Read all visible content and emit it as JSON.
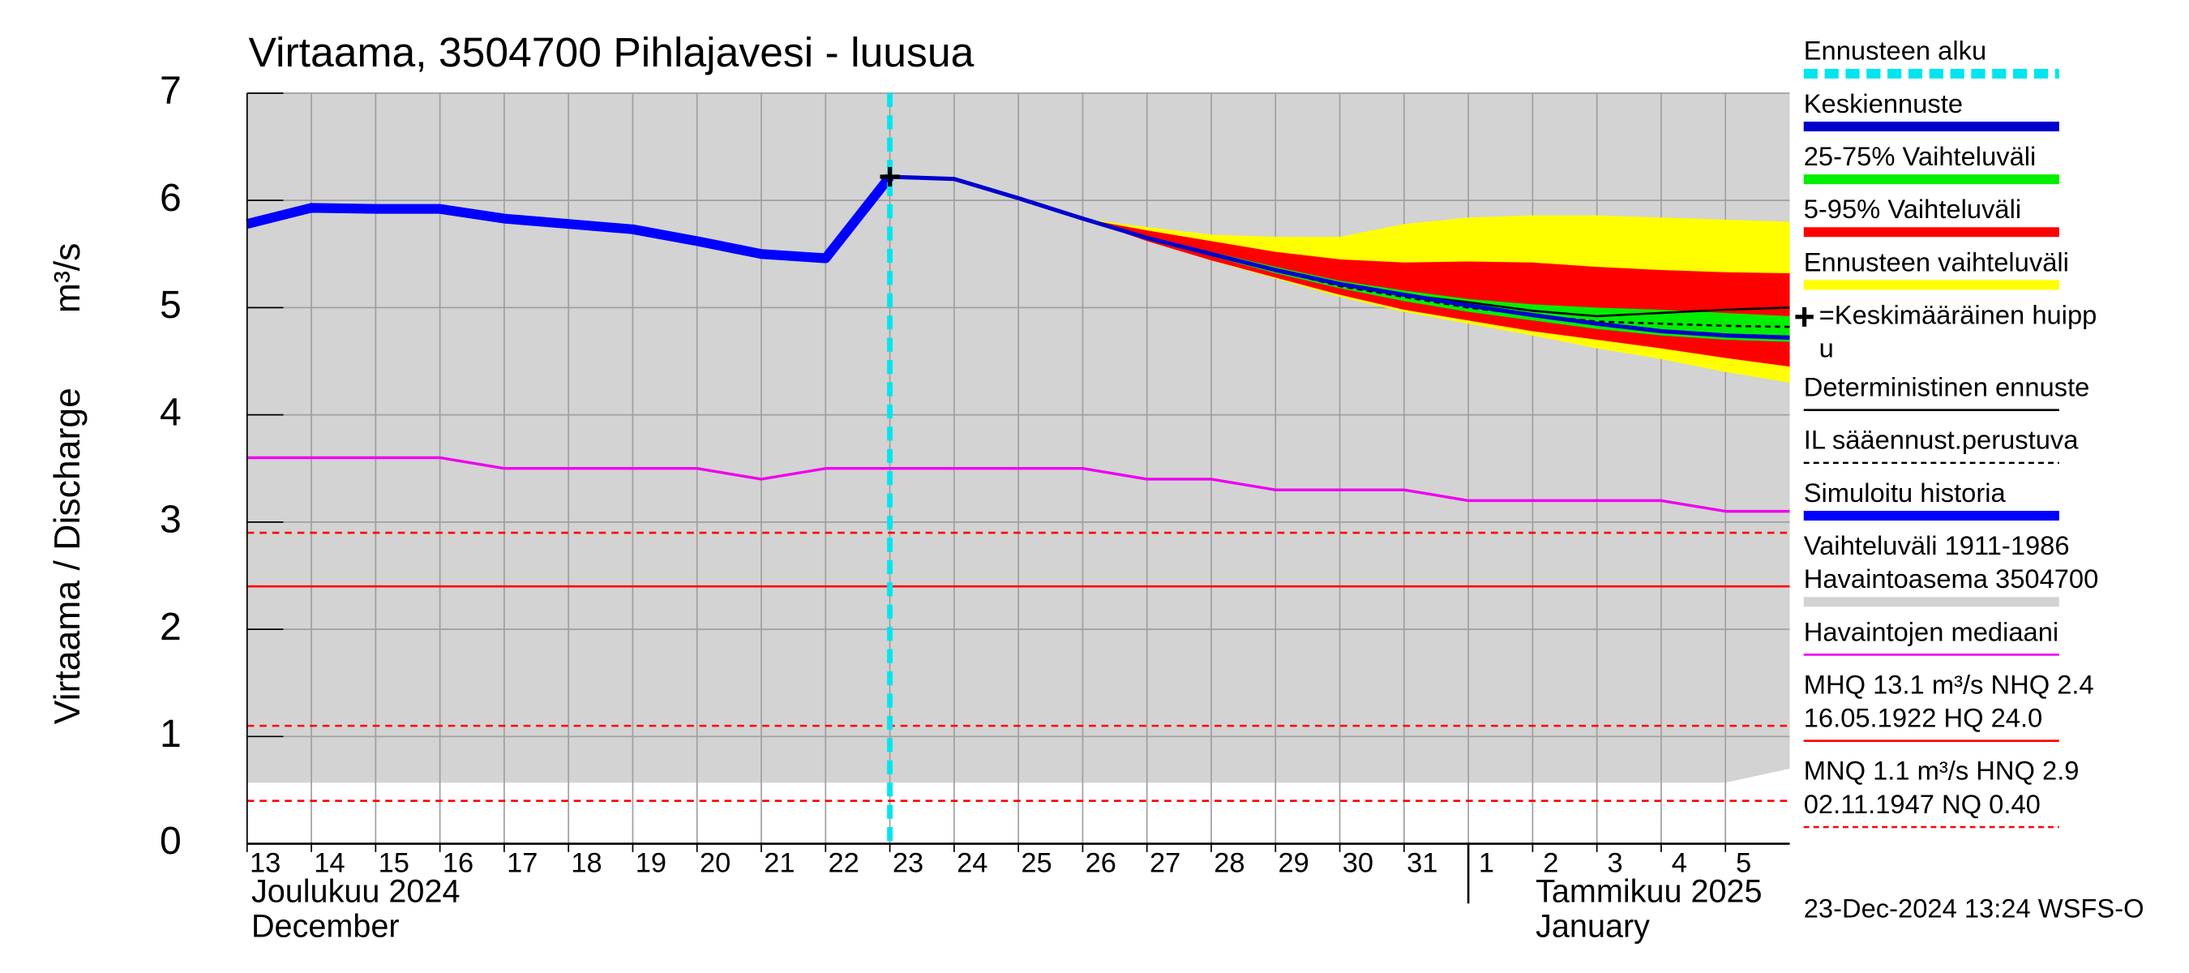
{
  "chart_data": {
    "type": "line",
    "title": "Virtaama, 3504700 Pihlajavesi - luusua",
    "ylabel": "Virtaama / Discharge",
    "yunit": "m³/s",
    "month_labels": [
      [
        "Joulukuu  2024",
        "December"
      ],
      [
        "Tammikuu  2025",
        "January"
      ]
    ],
    "footer": "23-Dec-2024 13:24 WSFS-O",
    "xlim": [
      0,
      24
    ],
    "ylim": [
      0,
      7
    ],
    "yticks": [
      0,
      1,
      2,
      3,
      4,
      5,
      6,
      7
    ],
    "xticks": [
      {
        "value": 0,
        "label": "13"
      },
      {
        "value": 1,
        "label": "14"
      },
      {
        "value": 2,
        "label": "15"
      },
      {
        "value": 3,
        "label": "16"
      },
      {
        "value": 4,
        "label": "17"
      },
      {
        "value": 5,
        "label": "18"
      },
      {
        "value": 6,
        "label": "19"
      },
      {
        "value": 7,
        "label": "20"
      },
      {
        "value": 8,
        "label": "21"
      },
      {
        "value": 9,
        "label": "22"
      },
      {
        "value": 10,
        "label": "23"
      },
      {
        "value": 11,
        "label": "24"
      },
      {
        "value": 12,
        "label": "25"
      },
      {
        "value": 13,
        "label": "26"
      },
      {
        "value": 14,
        "label": "27"
      },
      {
        "value": 15,
        "label": "28"
      },
      {
        "value": 16,
        "label": "29"
      },
      {
        "value": 17,
        "label": "30"
      },
      {
        "value": 18,
        "label": "31"
      },
      {
        "value": 19,
        "label": "1"
      },
      {
        "value": 20,
        "label": "2"
      },
      {
        "value": 21,
        "label": "3"
      },
      {
        "value": 22,
        "label": "4"
      },
      {
        "value": 23,
        "label": "5"
      }
    ],
    "month_boundary": 19,
    "grid": true,
    "legend": "right",
    "series": [
      {
        "name": "Ennusteen alku",
        "kind": "vline",
        "x": 10,
        "color": "#00e5ee",
        "dashed": true,
        "width": 4
      },
      {
        "name": "Keskiennuste",
        "kind": "line",
        "color": "#0000cc",
        "width": 3,
        "x": [
          10,
          11,
          12,
          13,
          14,
          15,
          16,
          17,
          18,
          19,
          20,
          21,
          22,
          23,
          24
        ],
        "values": [
          6.22,
          6.2,
          6.02,
          5.83,
          5.65,
          5.5,
          5.35,
          5.22,
          5.12,
          5.02,
          4.93,
          4.85,
          4.78,
          4.74,
          4.72
        ]
      },
      {
        "name": "25-75% Vaihteluväli",
        "kind": "band",
        "color": "#00ee00",
        "x": [
          13,
          14,
          15,
          16,
          17,
          18,
          19,
          20,
          21,
          22,
          23,
          24
        ],
        "upper": [
          5.83,
          5.66,
          5.52,
          5.38,
          5.25,
          5.16,
          5.08,
          5.03,
          5.0,
          4.98,
          4.95,
          4.92
        ],
        "lower": [
          5.83,
          5.64,
          5.48,
          5.32,
          5.18,
          5.06,
          4.96,
          4.88,
          4.8,
          4.74,
          4.7,
          4.68
        ]
      },
      {
        "name": "5-95% Vaihteluväli",
        "kind": "band",
        "color": "#ff0000",
        "x": [
          13,
          14,
          15,
          16,
          17,
          18,
          19,
          20,
          21,
          22,
          23,
          24
        ],
        "upper": [
          5.83,
          5.72,
          5.62,
          5.52,
          5.45,
          5.42,
          5.43,
          5.42,
          5.38,
          5.35,
          5.33,
          5.32
        ],
        "lower": [
          5.83,
          5.62,
          5.44,
          5.28,
          5.12,
          4.98,
          4.88,
          4.78,
          4.7,
          4.62,
          4.53,
          4.45
        ]
      },
      {
        "name": "Ennusteen vaihteluväli",
        "kind": "band",
        "color": "#ffff00",
        "x": [
          13,
          14,
          15,
          16,
          17,
          18,
          19,
          20,
          21,
          22,
          23,
          24
        ],
        "upper": [
          5.83,
          5.75,
          5.68,
          5.66,
          5.66,
          5.78,
          5.84,
          5.86,
          5.86,
          5.84,
          5.82,
          5.8
        ],
        "lower": [
          5.83,
          5.62,
          5.44,
          5.27,
          5.1,
          4.96,
          4.85,
          4.74,
          4.62,
          4.52,
          4.4,
          4.3
        ]
      },
      {
        "name": [
          "=Keskimääräinen huipp",
          "u"
        ],
        "kind": "marker",
        "color": "#000000",
        "x": 10,
        "value": 6.22
      },
      {
        "name": "Deterministinen ennuste",
        "kind": "line",
        "color": "#000000",
        "width": 1.5,
        "x": [
          10,
          11,
          12,
          13,
          14,
          15,
          16,
          17,
          18,
          19,
          20,
          21,
          22,
          23,
          24
        ],
        "values": [
          6.22,
          6.2,
          6.02,
          5.83,
          5.65,
          5.5,
          5.35,
          5.22,
          5.12,
          5.05,
          4.97,
          4.92,
          4.95,
          4.98,
          5.0
        ]
      },
      {
        "name": "IL sääennust.perustuva",
        "kind": "line",
        "color": "#000000",
        "width": 1.5,
        "dashed": true,
        "x": [
          13,
          14,
          15,
          16,
          17,
          18,
          19,
          20,
          21,
          22,
          23,
          24
        ],
        "values": [
          5.83,
          5.65,
          5.5,
          5.35,
          5.2,
          5.1,
          5.0,
          4.93,
          4.87,
          4.85,
          4.83,
          4.82
        ]
      },
      {
        "name": "Simuloitu historia",
        "kind": "line",
        "color": "#0000ff",
        "width": 7,
        "x": [
          0,
          1,
          2,
          3,
          4,
          5,
          6,
          7,
          8,
          9,
          10
        ],
        "values": [
          5.78,
          5.93,
          5.92,
          5.92,
          5.83,
          5.78,
          5.73,
          5.62,
          5.5,
          5.46,
          6.22
        ]
      },
      {
        "name": [
          "Vaihteluväli 1911-1986",
          " Havaintoasema 3504700"
        ],
        "kind": "band",
        "color": "#d3d3d3",
        "x": [
          0,
          23,
          24
        ],
        "upper": [
          7,
          7,
          7
        ],
        "lower": [
          0.57,
          0.57,
          0.7
        ]
      },
      {
        "name": "Havaintojen mediaani",
        "kind": "line",
        "color": "#ee00ee",
        "width": 2,
        "x": [
          0,
          3,
          4,
          7,
          8,
          9,
          13,
          14,
          15,
          16,
          18,
          19,
          22,
          23,
          24
        ],
        "values": [
          3.6,
          3.6,
          3.5,
          3.5,
          3.4,
          3.5,
          3.5,
          3.4,
          3.4,
          3.3,
          3.3,
          3.2,
          3.2,
          3.1,
          3.1
        ]
      },
      {
        "name": [
          "MHQ 13.1 m³/s NHQ  2.4",
          "16.05.1922 HQ 24.0"
        ],
        "kind": "hline",
        "color": "#ff0000",
        "width": 1.5,
        "values": [
          2.4
        ]
      },
      {
        "name": [
          "MNQ  1.1 m³/s HNQ  2.9",
          "02.11.1947 NQ 0.40"
        ],
        "kind": "hline",
        "color": "#ff0000",
        "width": 1.5,
        "dashed": true,
        "values": [
          2.9,
          1.1,
          0.4
        ]
      }
    ]
  }
}
